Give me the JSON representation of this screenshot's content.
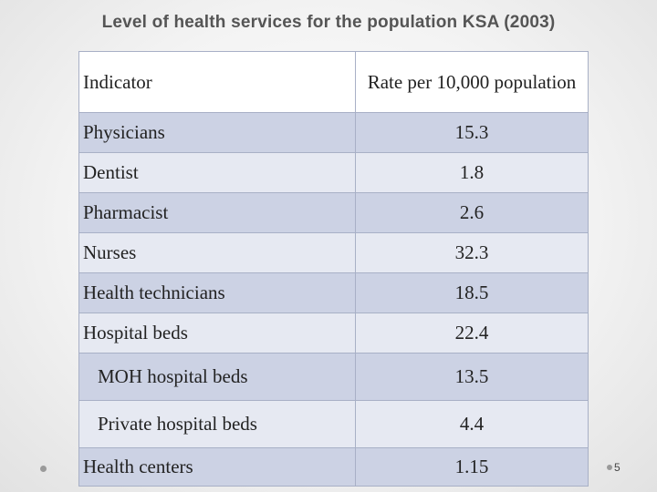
{
  "slide": {
    "title": "Level of health services for the population KSA (2003)",
    "page_number": "5"
  },
  "table": {
    "headers": {
      "indicator": "Indicator",
      "rate": "Rate per 10,000 population"
    },
    "rows": [
      {
        "label": "Physicians",
        "value": "15.3"
      },
      {
        "label": "Dentist",
        "value": "1.8"
      },
      {
        "label": "Pharmacist",
        "value": "2.6"
      },
      {
        "label": "Nurses",
        "value": "32.3"
      },
      {
        "label": "Health technicians",
        "value": "18.5"
      },
      {
        "label": "Hospital beds",
        "value": "22.4"
      },
      {
        "label": "MOH hospital beds",
        "value": "13.5"
      },
      {
        "label": "Private hospital beds",
        "value": "4.4"
      },
      {
        "label": "Health centers",
        "value": "1.15"
      }
    ]
  },
  "colors": {
    "row_dark": "#ccd2e4",
    "row_light": "#e6e9f2",
    "title": "#555555"
  }
}
